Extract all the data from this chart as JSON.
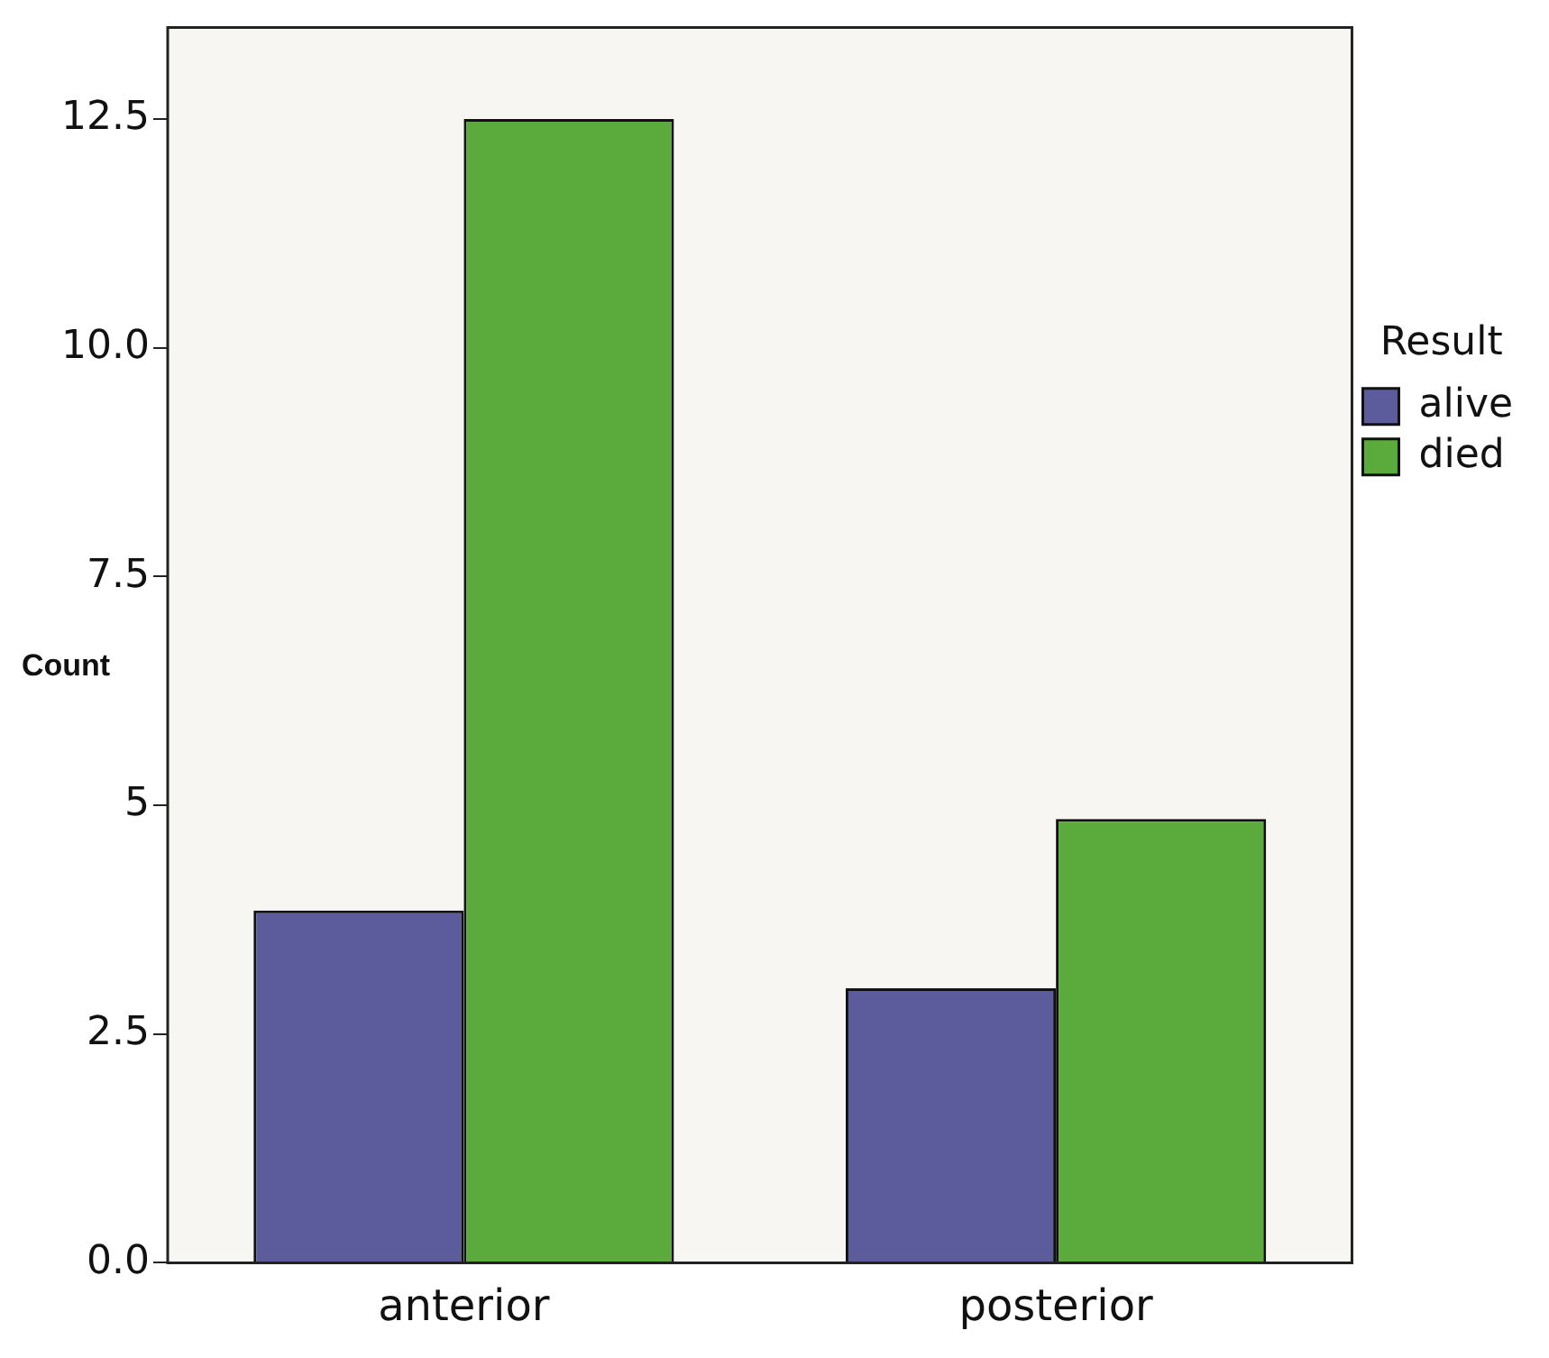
{
  "chart_data": {
    "type": "bar",
    "ylabel": "Count",
    "legend_title": "Result",
    "legend": "right",
    "grid": false,
    "categories": [
      "anterior",
      "posterior"
    ],
    "series": [
      {
        "name": "alive",
        "color": "#5c5c9c",
        "values": [
          3.85,
          3.0
        ]
      },
      {
        "name": "died",
        "color": "#5aaa3c",
        "values": [
          12.5,
          4.85
        ]
      }
    ],
    "ylim": [
      0,
      13.5
    ],
    "yticks": [
      {
        "value": 0,
        "label": "0.0"
      },
      2.5,
      5,
      7.5,
      {
        "value": 10,
        "label": "10.0"
      },
      12.5
    ]
  }
}
